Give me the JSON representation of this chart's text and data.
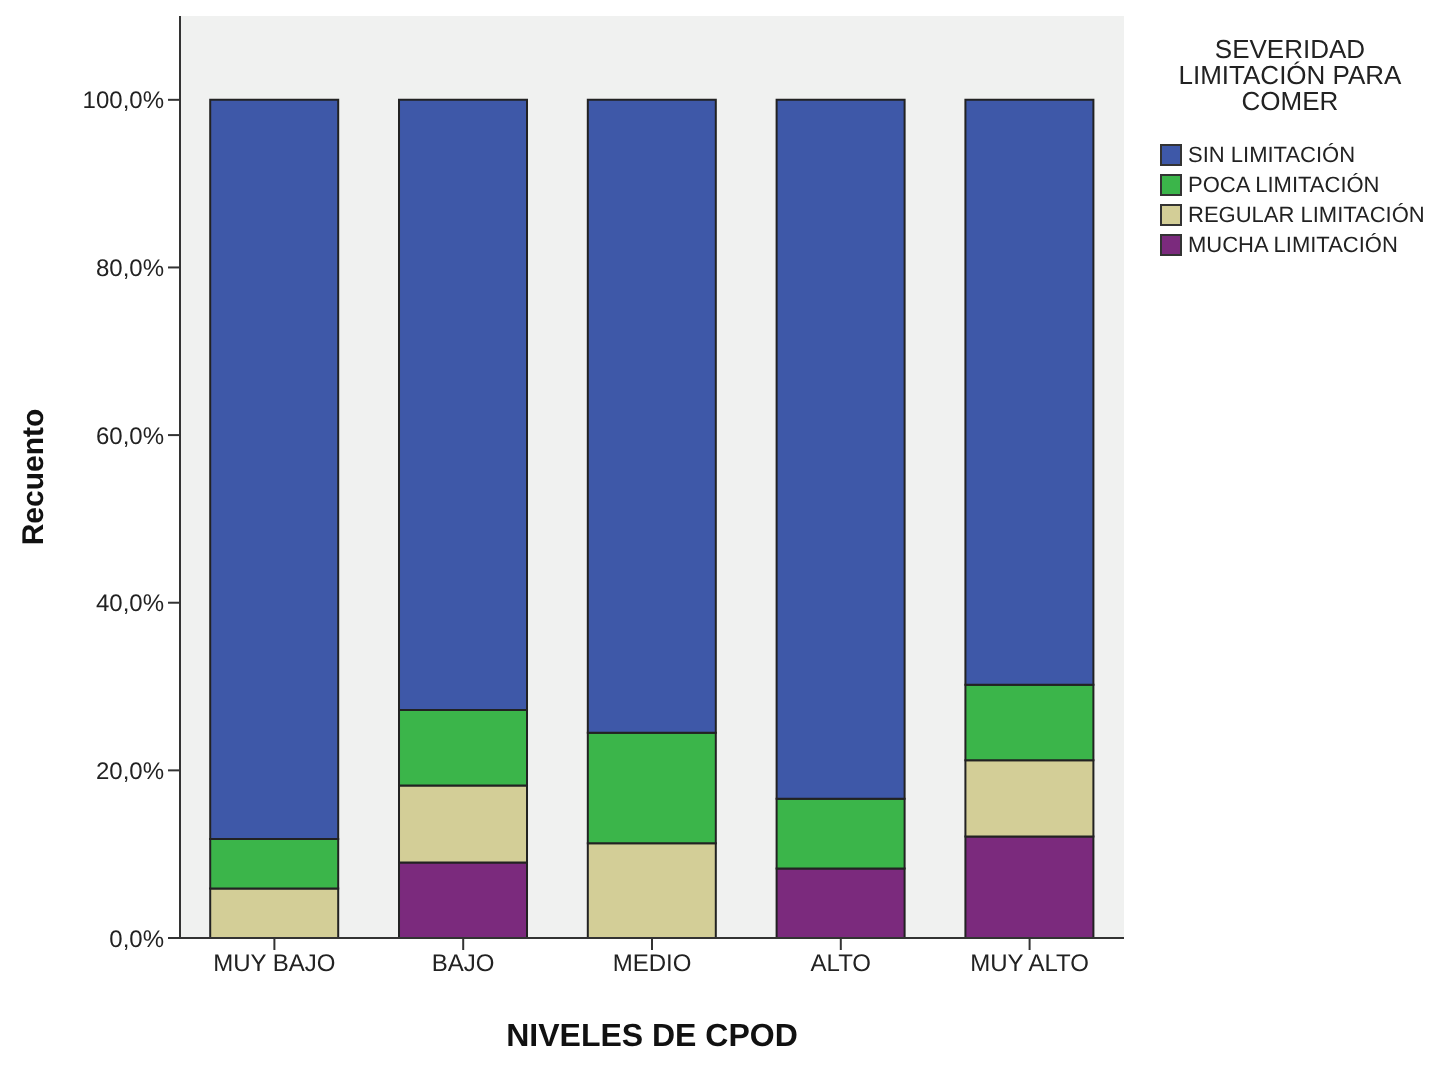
{
  "chart_data": {
    "type": "bar",
    "stacked": true,
    "xlabel": "NIVELES DE CPOD",
    "ylabel": "Recuento",
    "legend_title": "SEVERIDAD LIMITACIÓN PARA COMER",
    "legend": "top right",
    "grid": false,
    "categories": [
      "MUY BAJO",
      "BAJO",
      "MEDIO",
      "ALTO",
      "MUY ALTO"
    ],
    "series": [
      {
        "name": "MUCHA LIMITACIÓN",
        "color": "#7b2a7d",
        "values": [
          0,
          9.0,
          0,
          8.3,
          12.1
        ]
      },
      {
        "name": "REGULAR LIMITACIÓN",
        "color": "#d3ce97",
        "values": [
          5.9,
          9.2,
          11.3,
          0,
          9.1
        ]
      },
      {
        "name": "POCA LIMITACIÓN",
        "color": "#3bb54a",
        "values": [
          5.9,
          9.0,
          13.2,
          8.3,
          9.0
        ]
      },
      {
        "name": "SIN LIMITACIÓN",
        "color": "#3e58a8",
        "values": [
          88.2,
          72.8,
          75.5,
          83.4,
          69.8
        ]
      }
    ],
    "ylim": [
      0,
      110
    ],
    "yticks": [
      {
        "value": 0,
        "label": "0,0%"
      },
      {
        "value": 20,
        "label": "20,0%"
      },
      {
        "value": 40,
        "label": "40,0%"
      },
      {
        "value": 60,
        "label": "60,0%"
      },
      {
        "value": 80,
        "label": "80,0%"
      },
      {
        "value": 100,
        "label": "100,0%"
      }
    ]
  }
}
